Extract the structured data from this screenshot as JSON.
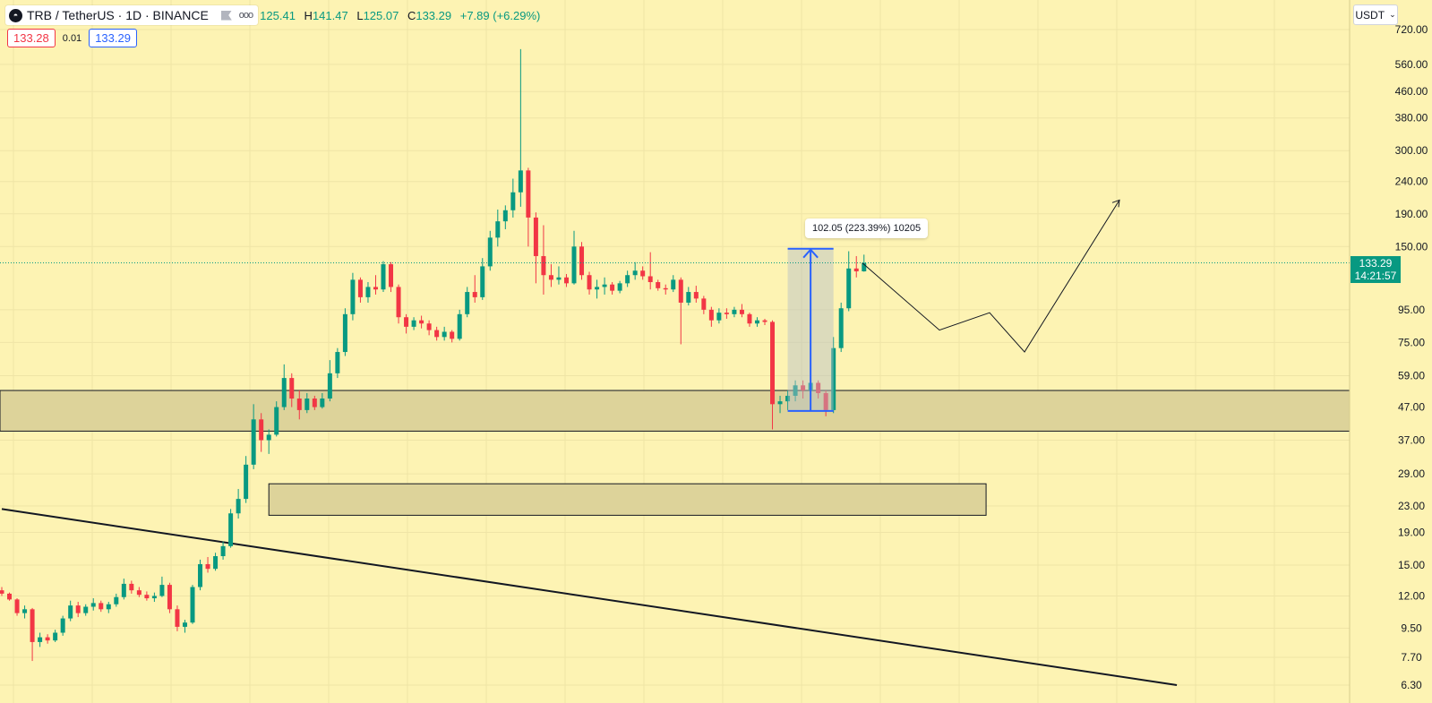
{
  "header": {
    "symbol_title": "TRB / TetherUS · 1D · BINANCE",
    "logo_glyph": "◓",
    "more_glyph": "ooo",
    "ohlc": [
      {
        "key": "",
        "value": "125.41"
      },
      {
        "key": "H",
        "value": "141.47"
      },
      {
        "key": "L",
        "value": "125.07"
      },
      {
        "key": "C",
        "value": "133.29"
      },
      {
        "key": "",
        "value": "+7.89 (+6.29%)"
      }
    ]
  },
  "quote": {
    "bid": "133.28",
    "spread": "0.01",
    "ask": "133.29"
  },
  "currency_selector": {
    "label": "USDT",
    "chevron": "⌄"
  },
  "last_price_label": {
    "price": "133.29",
    "countdown": "14:21:57"
  },
  "measure_tooltip": "102.05 (223.39%) 10205",
  "colors": {
    "up": "#089981",
    "down": "#f23645",
    "background": "#fdf3b3",
    "measure": "#2962ff"
  },
  "chart_data": {
    "type": "candlestick",
    "symbol": "TRB / TetherUS",
    "interval": "1D",
    "exchange": "BINANCE",
    "y_scale": "log",
    "ylim": [
      6.3,
      720
    ],
    "y_ticks": [
      "720.00",
      "560.00",
      "460.00",
      "380.00",
      "300.00",
      "240.00",
      "190.00",
      "150.00",
      "95.00",
      "75.00",
      "59.00",
      "47.00",
      "37.00",
      "29.00",
      "23.00",
      "19.00",
      "15.00",
      "12.00",
      "9.50",
      "7.70",
      "6.30"
    ],
    "last_price": 133.29,
    "candles": [
      [
        12.5,
        12.8,
        12.0,
        12.2
      ],
      [
        12.2,
        12.3,
        11.6,
        11.7
      ],
      [
        11.7,
        11.8,
        10.4,
        10.6
      ],
      [
        10.6,
        11.2,
        10.2,
        10.9
      ],
      [
        10.9,
        11.0,
        7.5,
        8.6
      ],
      [
        8.6,
        9.2,
        8.3,
        8.9
      ],
      [
        8.9,
        9.1,
        8.5,
        8.7
      ],
      [
        8.7,
        9.4,
        8.6,
        9.2
      ],
      [
        9.2,
        10.4,
        9.0,
        10.2
      ],
      [
        10.2,
        11.6,
        10.0,
        11.2
      ],
      [
        11.2,
        11.5,
        10.3,
        10.6
      ],
      [
        10.6,
        11.3,
        10.4,
        11.1
      ],
      [
        11.1,
        11.8,
        10.8,
        11.4
      ],
      [
        11.4,
        11.6,
        10.7,
        10.9
      ],
      [
        10.9,
        11.5,
        10.6,
        11.3
      ],
      [
        11.3,
        12.2,
        11.1,
        11.9
      ],
      [
        11.9,
        13.6,
        11.7,
        13.1
      ],
      [
        13.1,
        13.4,
        12.2,
        12.5
      ],
      [
        12.5,
        12.8,
        11.9,
        12.1
      ],
      [
        12.1,
        12.4,
        11.6,
        11.8
      ],
      [
        11.8,
        12.3,
        11.5,
        12.0
      ],
      [
        12.0,
        13.8,
        11.9,
        13.0
      ],
      [
        13.0,
        13.2,
        10.6,
        10.9
      ],
      [
        10.9,
        11.2,
        9.3,
        9.6
      ],
      [
        9.6,
        10.1,
        9.2,
        9.9
      ],
      [
        9.9,
        13.0,
        9.8,
        12.8
      ],
      [
        12.8,
        15.6,
        12.5,
        15.1
      ],
      [
        15.1,
        15.9,
        14.2,
        14.6
      ],
      [
        14.6,
        16.4,
        14.4,
        16.0
      ],
      [
        16.0,
        17.8,
        15.6,
        17.2
      ],
      [
        17.2,
        22.5,
        17.0,
        21.8
      ],
      [
        21.8,
        26.0,
        21.0,
        24.2
      ],
      [
        24.2,
        33.0,
        23.5,
        31.0
      ],
      [
        31.0,
        48.0,
        30.0,
        43.0
      ],
      [
        43.0,
        45.0,
        34.0,
        37.0
      ],
      [
        37.0,
        40.0,
        33.5,
        38.5
      ],
      [
        38.5,
        49.0,
        38.0,
        47.0
      ],
      [
        47.0,
        64.0,
        46.0,
        58.0
      ],
      [
        58.0,
        60.0,
        47.0,
        50.0
      ],
      [
        50.0,
        53.0,
        43.0,
        46.0
      ],
      [
        46.0,
        52.0,
        45.0,
        50.0
      ],
      [
        50.0,
        51.0,
        46.0,
        47.0
      ],
      [
        47.0,
        52.0,
        46.5,
        50.0
      ],
      [
        50.0,
        66.0,
        49.0,
        60.0
      ],
      [
        60.0,
        72.0,
        58.0,
        70.0
      ],
      [
        70.0,
        96.0,
        68.0,
        92.0
      ],
      [
        92.0,
        124.0,
        88.0,
        118.0
      ],
      [
        118.0,
        120.0,
        100.0,
        104.0
      ],
      [
        104.0,
        116.0,
        100.0,
        112.0
      ],
      [
        112.0,
        122.0,
        106.0,
        110.0
      ],
      [
        110.0,
        135.0,
        108.0,
        132.0
      ],
      [
        132.0,
        134.0,
        108.0,
        112.0
      ],
      [
        112.0,
        114.0,
        86.0,
        90.0
      ],
      [
        90.0,
        92.0,
        80.0,
        84.0
      ],
      [
        84.0,
        90.0,
        82.0,
        88.0
      ],
      [
        88.0,
        91.0,
        83.0,
        86.0
      ],
      [
        86.0,
        88.0,
        79.0,
        82.0
      ],
      [
        82.0,
        84.0,
        76.0,
        78.0
      ],
      [
        78.0,
        84.0,
        76.0,
        81.0
      ],
      [
        81.0,
        82.0,
        75.0,
        77.0
      ],
      [
        77.0,
        95.0,
        76.0,
        92.0
      ],
      [
        92.0,
        112.0,
        90.0,
        108.0
      ],
      [
        108.0,
        122.0,
        100.0,
        104.0
      ],
      [
        104.0,
        138.0,
        102.0,
        130.0
      ],
      [
        130.0,
        168.0,
        126.0,
        160.0
      ],
      [
        160.0,
        196.0,
        150.0,
        180.0
      ],
      [
        180.0,
        202.0,
        170.0,
        195.0
      ],
      [
        195.0,
        245.0,
        185.0,
        222.0
      ],
      [
        222.0,
        625.0,
        200.0,
        260.0
      ],
      [
        260.0,
        265.0,
        150.0,
        185.0
      ],
      [
        185.0,
        192.0,
        115.0,
        140.0
      ],
      [
        140.0,
        175.0,
        106.0,
        122.0
      ],
      [
        122.0,
        132.0,
        112.0,
        118.0
      ],
      [
        118.0,
        130.0,
        114.0,
        120.0
      ],
      [
        120.0,
        123.0,
        112.0,
        115.0
      ],
      [
        115.0,
        168.0,
        114.0,
        150.0
      ],
      [
        150.0,
        155.0,
        118.0,
        122.0
      ],
      [
        122.0,
        125.0,
        106.0,
        110.0
      ],
      [
        110.0,
        118.0,
        103.0,
        112.0
      ],
      [
        112.0,
        120.0,
        106.0,
        114.0
      ],
      [
        114.0,
        116.0,
        106.0,
        109.0
      ],
      [
        109.0,
        117.0,
        107.0,
        115.0
      ],
      [
        115.0,
        126.0,
        112.0,
        122.0
      ],
      [
        122.0,
        134.0,
        118.0,
        126.0
      ],
      [
        126.0,
        130.0,
        118.0,
        121.0
      ],
      [
        121.0,
        144.0,
        110.0,
        116.0
      ],
      [
        116.0,
        118.0,
        109.0,
        111.0
      ],
      [
        111.0,
        114.0,
        106.0,
        110.0
      ],
      [
        110.0,
        122.0,
        108.0,
        118.0
      ],
      [
        118.0,
        120.0,
        74.0,
        100.0
      ],
      [
        100.0,
        112.0,
        98.0,
        108.0
      ],
      [
        108.0,
        113.0,
        100.0,
        103.0
      ],
      [
        103.0,
        105.0,
        92.0,
        95.0
      ],
      [
        95.0,
        97.0,
        84.0,
        88.0
      ],
      [
        88.0,
        96.0,
        86.0,
        93.0
      ],
      [
        93.0,
        96.0,
        89.0,
        92.0
      ],
      [
        92.0,
        97.0,
        90.0,
        95.0
      ],
      [
        95.0,
        99.0,
        90.0,
        92.0
      ],
      [
        92.0,
        93.0,
        84.0,
        86.0
      ],
      [
        86.0,
        90.0,
        84.0,
        88.0
      ],
      [
        88.0,
        89.0,
        85.0,
        87.0
      ],
      [
        87.0,
        88.0,
        40.0,
        48.0
      ],
      [
        48.0,
        51.0,
        45.0,
        49.0
      ],
      [
        49.0,
        53.0,
        46.0,
        51.0
      ],
      [
        51.0,
        57.0,
        49.0,
        55.0
      ],
      [
        55.0,
        57.0,
        50.0,
        53.0
      ],
      [
        53.0,
        58.0,
        51.0,
        56.0
      ],
      [
        56.0,
        57.0,
        50.0,
        52.0
      ],
      [
        52.0,
        53.0,
        44.0,
        46.0
      ],
      [
        46.0,
        78.0,
        45.0,
        72.0
      ],
      [
        72.0,
        100.0,
        70.0,
        96.0
      ],
      [
        96.0,
        145.0,
        94.0,
        128.0
      ],
      [
        128.0,
        140.0,
        120.0,
        125.4
      ],
      [
        125.41,
        141.47,
        125.07,
        133.29
      ]
    ],
    "zones": [
      {
        "from": 39.5,
        "to": 53.0,
        "label": ""
      },
      {
        "from": 21.5,
        "to": 27.0,
        "label": ""
      }
    ],
    "trendline": {
      "from": {
        "bar": 0,
        "price": 22.5
      },
      "to": {
        "bar": 154,
        "price": 6.3
      }
    },
    "measure": {
      "price_change": "102.05",
      "percent_change": "223.39%",
      "ticks": "10205",
      "from_price": 45.7,
      "to_price": 147.7
    },
    "projection_path": [
      133.29,
      82.0,
      93.0,
      70.0,
      210.0
    ]
  }
}
